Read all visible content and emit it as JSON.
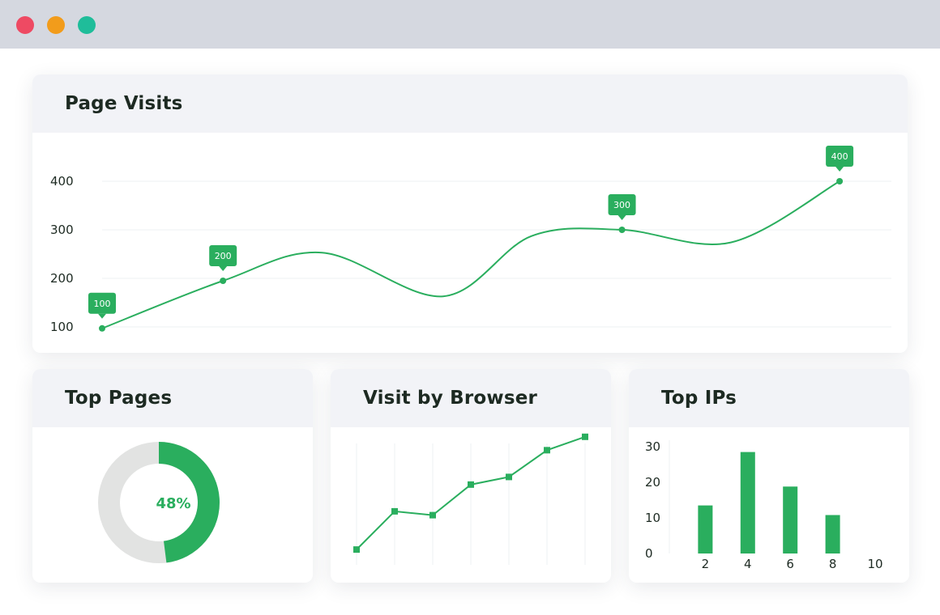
{
  "colors": {
    "accent": "#2aae5e",
    "grid": "#eef0f3",
    "track": "#e2e3e2"
  },
  "window": {
    "controls": [
      "close",
      "minimize",
      "maximize"
    ]
  },
  "page_visits": {
    "title": "Page Visits"
  },
  "top_pages": {
    "title": "Top Pages"
  },
  "visit_by_browser": {
    "title": "Visit by Browser"
  },
  "top_ips": {
    "title": "Top IPs"
  },
  "chart_data": [
    {
      "type": "line",
      "title": "Page Visits",
      "smooth": true,
      "y_ticks": [
        100,
        200,
        300,
        400
      ],
      "ylim": [
        100,
        400
      ],
      "points": [
        {
          "x": 0,
          "y": 97,
          "label": "100"
        },
        {
          "x": 1,
          "y": 195,
          "label": "200"
        },
        {
          "x": 1.82,
          "y": 253
        },
        {
          "x": 2.82,
          "y": 163
        },
        {
          "x": 3.55,
          "y": 287
        },
        {
          "x": 4.3,
          "y": 300,
          "label": "300"
        },
        {
          "x": 5.2,
          "y": 274
        },
        {
          "x": 6.1,
          "y": 400,
          "label": "400"
        }
      ],
      "grid": true
    },
    {
      "type": "pie",
      "title": "Top Pages",
      "donut": true,
      "value": 48,
      "center_label": "48%"
    },
    {
      "type": "line",
      "title": "Visit by Browser",
      "marker": "square",
      "x": [
        0,
        1,
        2,
        3,
        4,
        5,
        6
      ],
      "values": [
        4,
        14,
        13,
        21,
        23,
        30,
        33.5
      ],
      "ylim": [
        0,
        36
      ],
      "grid": "vertical"
    },
    {
      "type": "bar",
      "title": "Top IPs",
      "x_ticks": [
        2,
        4,
        6,
        8,
        10
      ],
      "y_ticks": [
        0,
        10,
        20,
        30
      ],
      "ylim": [
        0,
        30
      ],
      "categories": [
        2,
        4,
        6,
        8
      ],
      "values": [
        13.5,
        28.5,
        18.8,
        10.8
      ]
    }
  ]
}
